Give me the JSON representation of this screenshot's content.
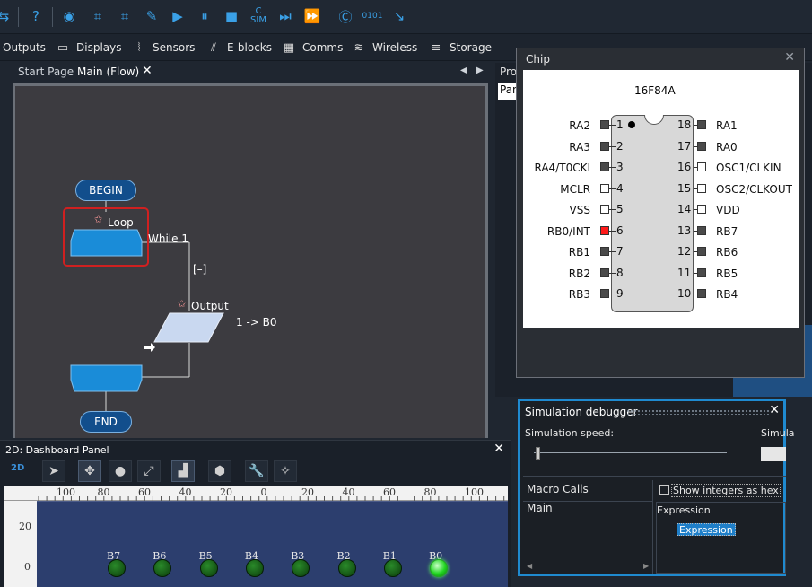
{
  "toolbar": {
    "icons": [
      "help-icon",
      "view-icon",
      "lcd-icon",
      "sdf-icon",
      "debug-icon",
      "play-icon",
      "pause-icon",
      "stop-icon",
      "step-icon",
      "step-into-icon",
      "fast-forward-icon",
      "code-icon",
      "binary-icon",
      "export-icon"
    ],
    "sim_label": "SIM"
  },
  "categories": [
    {
      "label": "Outputs"
    },
    {
      "label": "Displays"
    },
    {
      "label": "Sensors"
    },
    {
      "label": "E-blocks"
    },
    {
      "label": "Comms"
    },
    {
      "label": "Wireless"
    },
    {
      "label": "Storage"
    }
  ],
  "tabs": {
    "start_page": "Start Page",
    "main_flow": "Main (Flow)",
    "close": "✕"
  },
  "flowchart": {
    "begin": "BEGIN",
    "loop_label": "Loop",
    "while_label": "While 1",
    "collapse_label": "[–]",
    "output_label": "Output",
    "output_expr": "1 -> B0",
    "end": "END",
    "colors": {
      "icon_blue": "#1a8cd8",
      "macro_fill": "#c9d8f0",
      "selection": "#d02020"
    }
  },
  "properties": {
    "label_prefix": "Pro",
    "input_value": "Pan"
  },
  "chip": {
    "title": "Chip",
    "close": "✕",
    "model": "16F84A",
    "left_pins": [
      {
        "num": "1",
        "name": "RA2",
        "state": "on"
      },
      {
        "num": "2",
        "name": "RA3",
        "state": "on"
      },
      {
        "num": "3",
        "name": "RA4/T0CKI",
        "state": "on"
      },
      {
        "num": "4",
        "name": "MCLR",
        "state": "off"
      },
      {
        "num": "5",
        "name": "VSS",
        "state": "off"
      },
      {
        "num": "6",
        "name": "RB0/INT",
        "state": "hot"
      },
      {
        "num": "7",
        "name": "RB1",
        "state": "on"
      },
      {
        "num": "8",
        "name": "RB2",
        "state": "on"
      },
      {
        "num": "9",
        "name": "RB3",
        "state": "on"
      }
    ],
    "right_pins": [
      {
        "num": "18",
        "name": "RA1",
        "state": "on"
      },
      {
        "num": "17",
        "name": "RA0",
        "state": "on"
      },
      {
        "num": "16",
        "name": "OSC1/CLKIN",
        "state": "off"
      },
      {
        "num": "15",
        "name": "OSC2/CLKOUT",
        "state": "off"
      },
      {
        "num": "14",
        "name": "VDD",
        "state": "off"
      },
      {
        "num": "13",
        "name": "RB7",
        "state": "on"
      },
      {
        "num": "12",
        "name": "RB6",
        "state": "on"
      },
      {
        "num": "11",
        "name": "RB5",
        "state": "on"
      },
      {
        "num": "10",
        "name": "RB4",
        "state": "on"
      }
    ]
  },
  "simulation_debugger": {
    "title": "Simulation debugger",
    "close": "✕",
    "speed_label": "Simulation speed:",
    "right_label_fragment": "Simula",
    "macro_calls": "Macro Calls",
    "main": "Main",
    "show_hex": "Show integers as hex",
    "expression_header": "Expression",
    "expression_item": "Expression"
  },
  "dashboard": {
    "title": "2D: Dashboard Panel",
    "close": "✕",
    "mode": "2D",
    "ruler_top": [
      "100",
      "80",
      "60",
      "40",
      "20",
      "0",
      "20",
      "40",
      "60",
      "80",
      "100"
    ],
    "ruler_left": [
      "20",
      "0"
    ],
    "leds": [
      {
        "label": "B7",
        "on": false
      },
      {
        "label": "B6",
        "on": false
      },
      {
        "label": "B5",
        "on": false
      },
      {
        "label": "B4",
        "on": false
      },
      {
        "label": "B3",
        "on": false
      },
      {
        "label": "B2",
        "on": false
      },
      {
        "label": "B1",
        "on": false
      },
      {
        "label": "B0",
        "on": true
      }
    ]
  }
}
